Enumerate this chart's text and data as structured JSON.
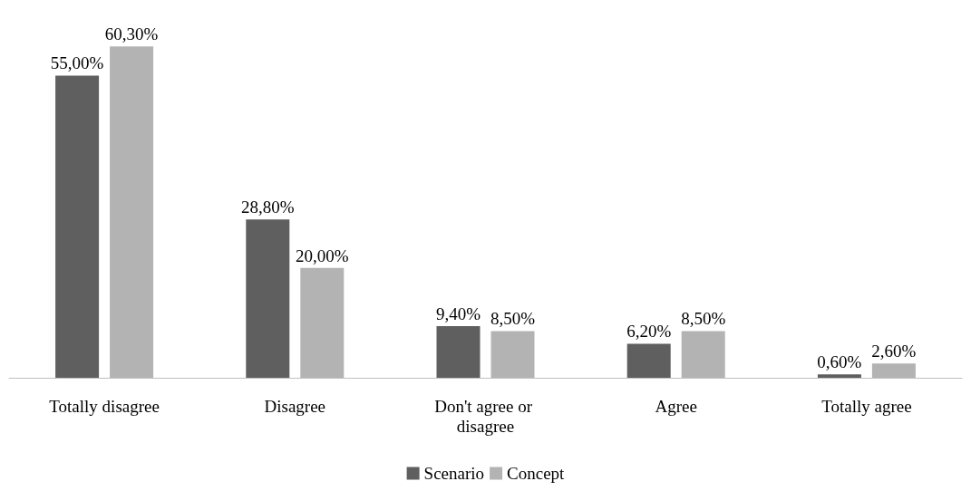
{
  "chart_data": {
    "type": "bar",
    "categories": [
      "Totally disagree",
      "Disagree",
      "Don't agree or disagree",
      "Agree",
      "Totally agree"
    ],
    "series": [
      {
        "name": "Scenario",
        "color": "#5f5f5f",
        "values": [
          55.0,
          28.8,
          9.4,
          6.2,
          0.6
        ],
        "value_labels": [
          "55,00%",
          "28,80%",
          "9,40%",
          "6,20%",
          "0,60%"
        ]
      },
      {
        "name": "Concept",
        "color": "#b3b3b3",
        "values": [
          60.3,
          20.0,
          8.5,
          8.5,
          2.6
        ],
        "value_labels": [
          "60,30%",
          "20,00%",
          "8,50%",
          "8,50%",
          "2,60%"
        ]
      }
    ],
    "legend": "bottom"
  }
}
